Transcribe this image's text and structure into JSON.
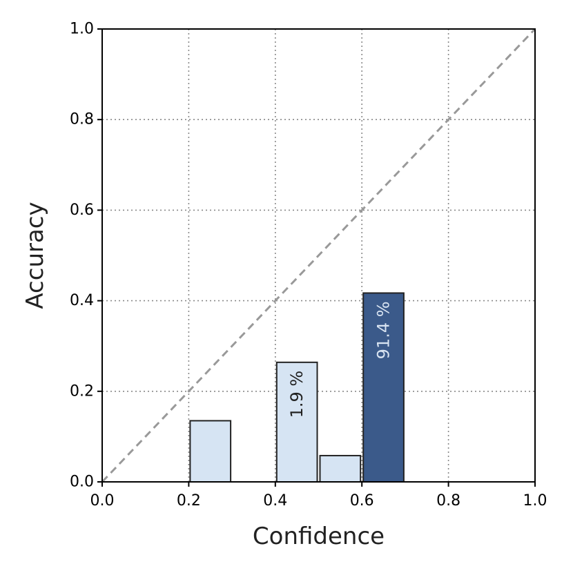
{
  "chart_data": {
    "type": "bar",
    "xlabel": "Confidence",
    "ylabel": "Accuracy",
    "xlim": [
      0.0,
      1.0
    ],
    "ylim": [
      0.0,
      1.0
    ],
    "grid": true,
    "xticks": [
      "0.0",
      "0.2",
      "0.4",
      "0.6",
      "0.8",
      "1.0"
    ],
    "yticks": [
      "0.0",
      "0.2",
      "0.4",
      "0.6",
      "0.8",
      "1.0"
    ],
    "bin_width": 0.1,
    "bins": [
      {
        "bin_start": 0.2,
        "bin_end": 0.3,
        "accuracy": 0.135,
        "label": ""
      },
      {
        "bin_start": 0.4,
        "bin_end": 0.5,
        "accuracy": 0.264,
        "label": "1.9 %"
      },
      {
        "bin_start": 0.5,
        "bin_end": 0.6,
        "accuracy": 0.058,
        "label": ""
      },
      {
        "bin_start": 0.6,
        "bin_end": 0.7,
        "accuracy": 0.417,
        "label": "91.4 %"
      }
    ],
    "reference_line": {
      "from": [
        0.0,
        0.0
      ],
      "to": [
        1.0,
        1.0
      ],
      "color": "#999999",
      "style": "dashed"
    },
    "colors": {
      "light_bar": "#d6e4f3",
      "dark_bar": "#3b5a8a",
      "light_bar_text": "#222222",
      "dark_bar_text": "#d9e4f2"
    }
  }
}
